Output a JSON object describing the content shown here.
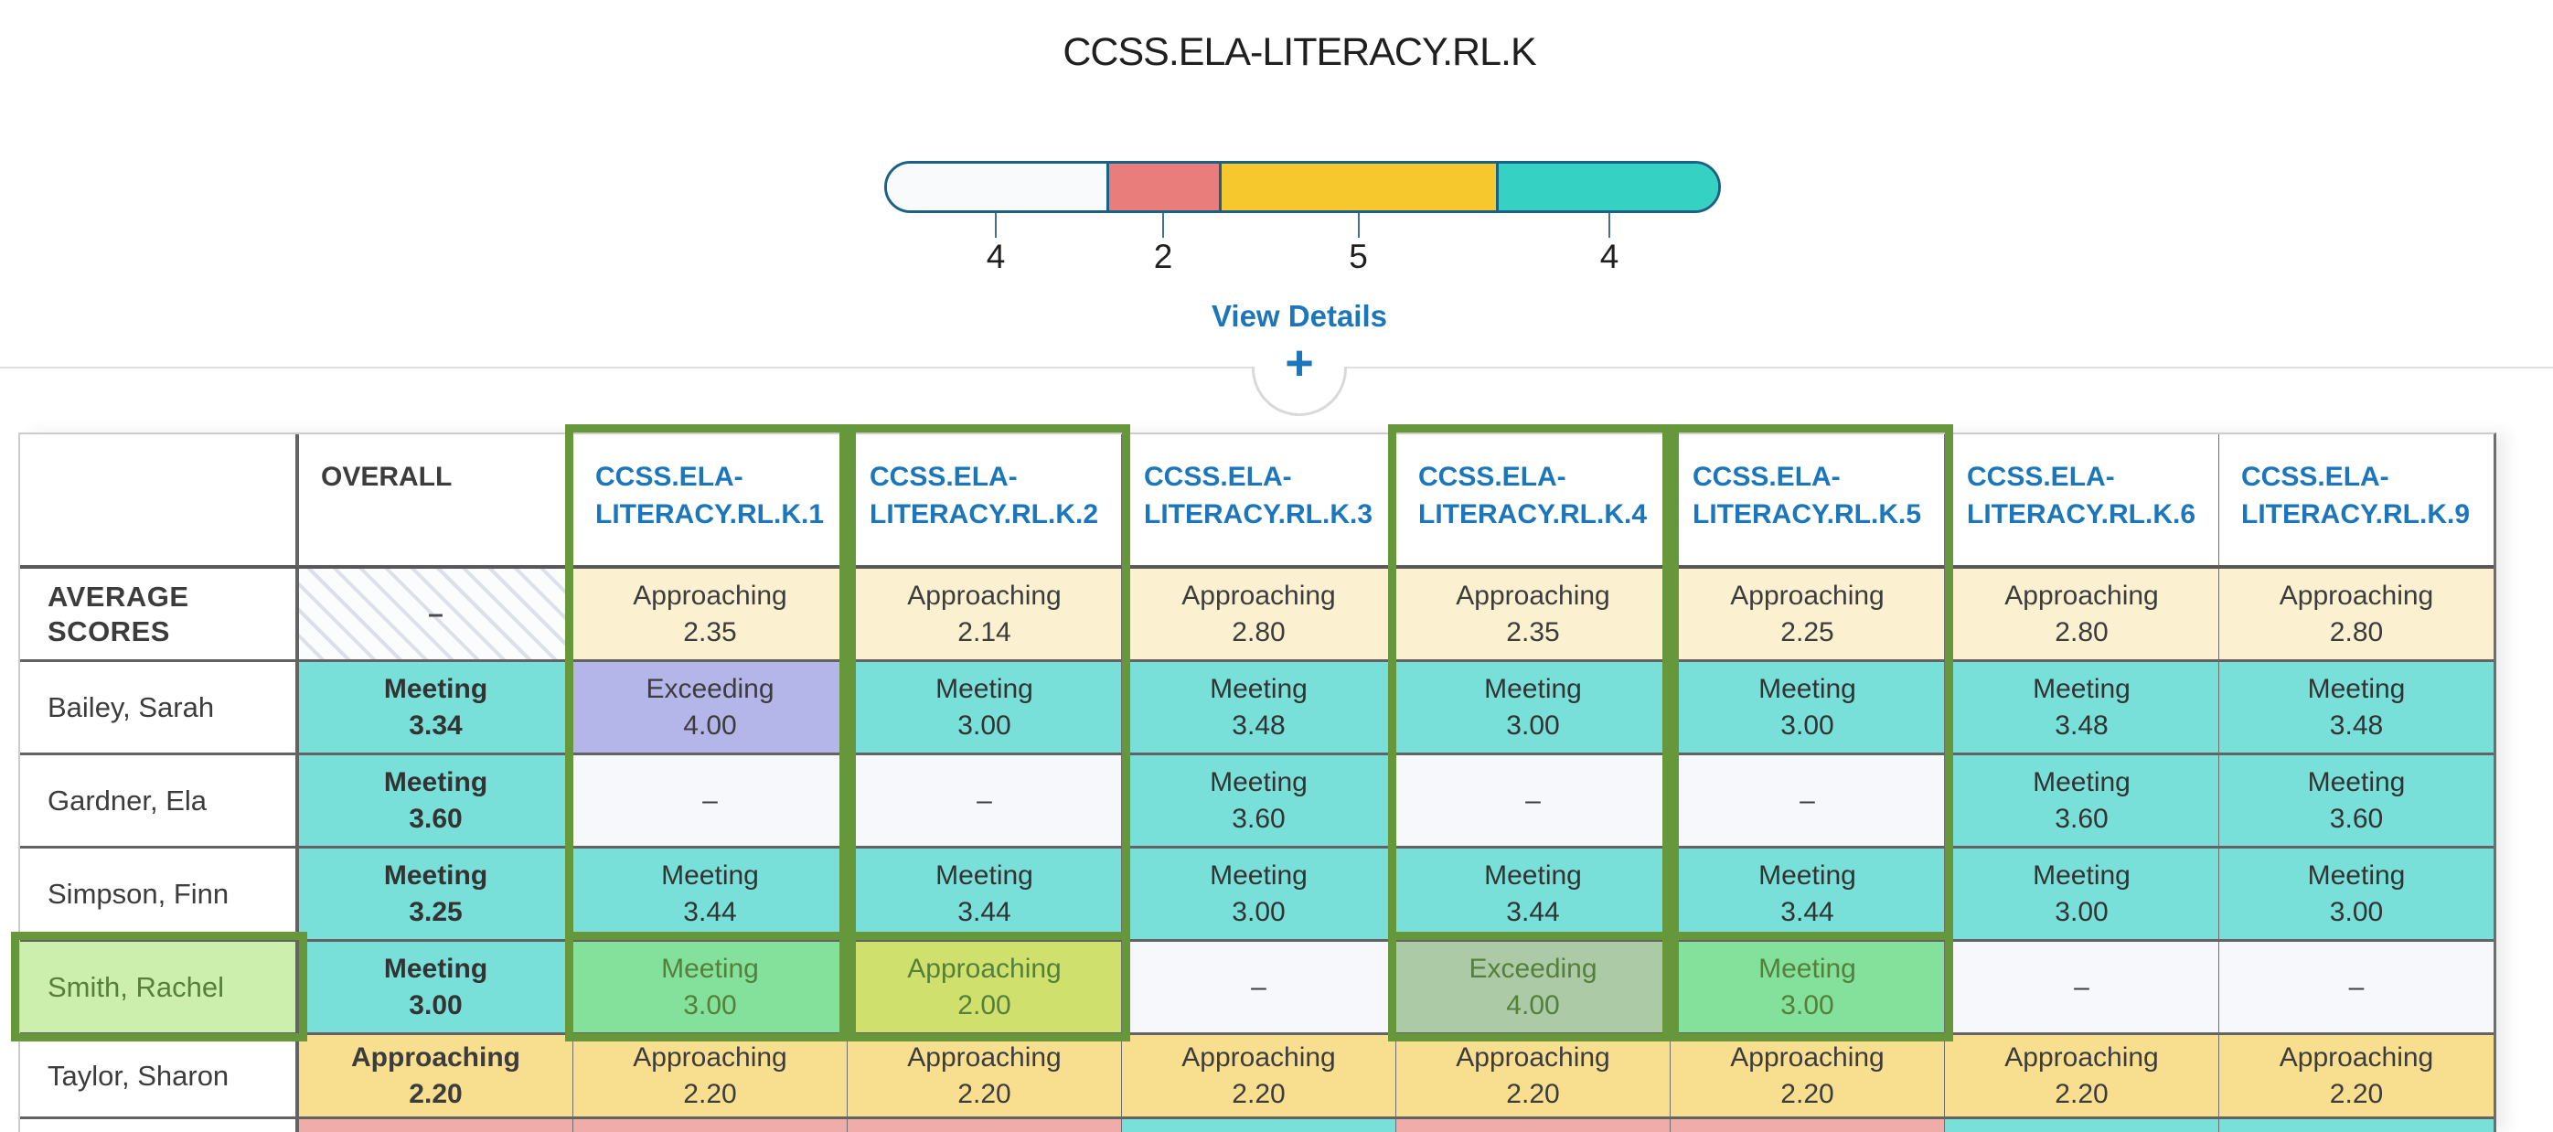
{
  "title": "CCSS.ELA-LITERACY.RL.K",
  "view_details_label": "View Details",
  "expand_button": "+",
  "colors": {
    "link_blue": "#1C76BC",
    "highlight_green": "#66973B",
    "bar_border": "#1A6186",
    "tick": "#48708E",
    "divider_gray": "#DFDFDF",
    "text_dark": "#3C3C3C"
  },
  "distribution": {
    "total": 15,
    "segments": [
      {
        "name": "no-score",
        "count": 4,
        "color": "#F8FAFC"
      },
      {
        "name": "beginning",
        "count": 2,
        "color": "#E97D7C"
      },
      {
        "name": "approaching",
        "count": 5,
        "color": "#F7C72E"
      },
      {
        "name": "meeting",
        "count": 4,
        "color": "#35D1C3"
      }
    ]
  },
  "palette": {
    "teal": {
      "bg": "#79DFD9",
      "text": "#333333"
    },
    "yellow_light": {
      "bg": "#FBF1D0",
      "text": "#3C3C3C"
    },
    "yellow": {
      "bg": "#F8DF90",
      "text": "#3C3C3C"
    },
    "purple": {
      "bg": "#B4B6E9",
      "text": "#3C3C3C"
    },
    "pink": {
      "bg": "#F0ACA8",
      "text": "#3C3C3C"
    },
    "empty": {
      "bg": "#F6F8FB",
      "text": "#3C3C3C"
    },
    "hatch": {
      "bg": "",
      "text": "#4A4A4A"
    },
    "white": {
      "bg": "#FFFFFF",
      "text": "#3C3C3C"
    },
    "green_name": {
      "bg": "#CDEFAD",
      "text": "#567F3A"
    },
    "green_teal": {
      "bg": "#84E19C",
      "text": "#55803C"
    },
    "green_yellow": {
      "bg": "#CFE16C",
      "text": "#55803C"
    },
    "green_purple": {
      "bg": "#ABCAA5",
      "text": "#55803C"
    }
  },
  "selection": {
    "highlighted_columns": [
      "CCSS.ELA-LITERACY.RL.K.1",
      "CCSS.ELA-LITERACY.RL.K.2",
      "CCSS.ELA-LITERACY.RL.K.4",
      "CCSS.ELA-LITERACY.RL.K.5"
    ],
    "highlighted_row": "Smith, Rachel"
  },
  "table": {
    "columns": [
      {
        "label": "",
        "type": "blank",
        "highlighted": false
      },
      {
        "label": "OVERALL",
        "type": "overall",
        "highlighted": false
      },
      {
        "label": "CCSS.ELA-LITERACY.RL.K.1",
        "type": "standard",
        "highlighted": true
      },
      {
        "label": "CCSS.ELA-LITERACY.RL.K.2",
        "type": "standard",
        "highlighted": true
      },
      {
        "label": "CCSS.ELA-LITERACY.RL.K.3",
        "type": "standard",
        "highlighted": false
      },
      {
        "label": "CCSS.ELA-LITERACY.RL.K.4",
        "type": "standard",
        "highlighted": true
      },
      {
        "label": "CCSS.ELA-LITERACY.RL.K.5",
        "type": "standard",
        "highlighted": true
      },
      {
        "label": "CCSS.ELA-LITERACY.RL.K.6",
        "type": "standard",
        "highlighted": false
      },
      {
        "label": "CCSS.ELA-LITERACY.RL.K.9",
        "type": "standard",
        "highlighted": false
      }
    ],
    "rows": [
      {
        "name": "AVERAGE SCORES",
        "name_bg": "white",
        "name_bold": true,
        "row_class": "r",
        "cells": [
          {
            "bg": "hatch",
            "label": "–",
            "value": ""
          },
          {
            "bg": "yellow_light",
            "label": "Approaching",
            "value": "2.35"
          },
          {
            "bg": "yellow_light",
            "label": "Approaching",
            "value": "2.14"
          },
          {
            "bg": "yellow_light",
            "label": "Approaching",
            "value": "2.80"
          },
          {
            "bg": "yellow_light",
            "label": "Approaching",
            "value": "2.35"
          },
          {
            "bg": "yellow_light",
            "label": "Approaching",
            "value": "2.25"
          },
          {
            "bg": "yellow_light",
            "label": "Approaching",
            "value": "2.80"
          },
          {
            "bg": "yellow_light",
            "label": "Approaching",
            "value": "2.80"
          }
        ]
      },
      {
        "name": "Bailey, Sarah",
        "name_bg": "white",
        "name_bold": false,
        "row_class": "r",
        "cells": [
          {
            "bg": "teal",
            "label": "Meeting",
            "value": "3.34"
          },
          {
            "bg": "purple",
            "label": "Exceeding",
            "value": "4.00"
          },
          {
            "bg": "teal",
            "label": "Meeting",
            "value": "3.00"
          },
          {
            "bg": "teal",
            "label": "Meeting",
            "value": "3.48"
          },
          {
            "bg": "teal",
            "label": "Meeting",
            "value": "3.00"
          },
          {
            "bg": "teal",
            "label": "Meeting",
            "value": "3.00"
          },
          {
            "bg": "teal",
            "label": "Meeting",
            "value": "3.48"
          },
          {
            "bg": "teal",
            "label": "Meeting",
            "value": "3.48"
          }
        ]
      },
      {
        "name": "Gardner, Ela",
        "name_bg": "white",
        "name_bold": false,
        "row_class": "r",
        "cells": [
          {
            "bg": "teal",
            "label": "Meeting",
            "value": "3.60"
          },
          {
            "bg": "empty",
            "label": "–",
            "value": ""
          },
          {
            "bg": "empty",
            "label": "–",
            "value": ""
          },
          {
            "bg": "teal",
            "label": "Meeting",
            "value": "3.60"
          },
          {
            "bg": "empty",
            "label": "–",
            "value": ""
          },
          {
            "bg": "empty",
            "label": "–",
            "value": ""
          },
          {
            "bg": "teal",
            "label": "Meeting",
            "value": "3.60"
          },
          {
            "bg": "teal",
            "label": "Meeting",
            "value": "3.60"
          }
        ]
      },
      {
        "name": "Simpson, Finn",
        "name_bg": "white",
        "name_bold": false,
        "row_class": "r",
        "cells": [
          {
            "bg": "teal",
            "label": "Meeting",
            "value": "3.25"
          },
          {
            "bg": "teal",
            "label": "Meeting",
            "value": "3.44"
          },
          {
            "bg": "teal",
            "label": "Meeting",
            "value": "3.44"
          },
          {
            "bg": "teal",
            "label": "Meeting",
            "value": "3.00"
          },
          {
            "bg": "teal",
            "label": "Meeting",
            "value": "3.44"
          },
          {
            "bg": "teal",
            "label": "Meeting",
            "value": "3.44"
          },
          {
            "bg": "teal",
            "label": "Meeting",
            "value": "3.00"
          },
          {
            "bg": "teal",
            "label": "Meeting",
            "value": "3.00"
          }
        ]
      },
      {
        "name": "Smith, Rachel",
        "name_bg": "green_name",
        "name_bold": false,
        "row_class": "r",
        "cells": [
          {
            "bg": "teal",
            "label": "Meeting",
            "value": "3.00"
          },
          {
            "bg": "green_teal",
            "label": "Meeting",
            "value": "3.00"
          },
          {
            "bg": "green_yellow",
            "label": "Approaching",
            "value": "2.00"
          },
          {
            "bg": "empty",
            "label": "–",
            "value": ""
          },
          {
            "bg": "green_purple",
            "label": "Exceeding",
            "value": "4.00"
          },
          {
            "bg": "green_teal",
            "label": "Meeting",
            "value": "3.00"
          },
          {
            "bg": "empty",
            "label": "–",
            "value": ""
          },
          {
            "bg": "empty",
            "label": "–",
            "value": ""
          }
        ]
      },
      {
        "name": "Taylor, Sharon",
        "name_bg": "white",
        "name_bold": false,
        "row_class": "r r-taylor",
        "cells": [
          {
            "bg": "yellow",
            "label": "Approaching",
            "value": "2.20"
          },
          {
            "bg": "yellow",
            "label": "Approaching",
            "value": "2.20"
          },
          {
            "bg": "yellow",
            "label": "Approaching",
            "value": "2.20"
          },
          {
            "bg": "yellow",
            "label": "Approaching",
            "value": "2.20"
          },
          {
            "bg": "yellow",
            "label": "Approaching",
            "value": "2.20"
          },
          {
            "bg": "yellow",
            "label": "Approaching",
            "value": "2.20"
          },
          {
            "bg": "yellow",
            "label": "Approaching",
            "value": "2.20"
          },
          {
            "bg": "yellow",
            "label": "Approaching",
            "value": "2.20"
          }
        ]
      },
      {
        "name": "",
        "name_bg": "white",
        "name_bold": false,
        "row_class": "r-partial",
        "cells": [
          {
            "bg": "pink",
            "label": "",
            "value": ""
          },
          {
            "bg": "pink",
            "label": "",
            "value": ""
          },
          {
            "bg": "pink",
            "label": "",
            "value": ""
          },
          {
            "bg": "teal",
            "label": "",
            "value": ""
          },
          {
            "bg": "pink",
            "label": "",
            "value": ""
          },
          {
            "bg": "pink",
            "label": "",
            "value": ""
          },
          {
            "bg": "teal",
            "label": "",
            "value": ""
          },
          {
            "bg": "teal",
            "label": "",
            "value": ""
          }
        ]
      }
    ]
  }
}
